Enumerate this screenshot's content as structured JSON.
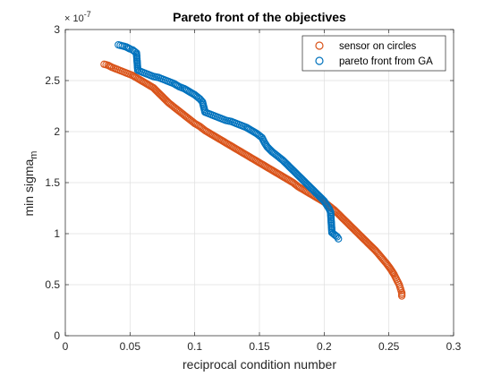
{
  "chart_data": {
    "type": "scatter",
    "title": "Pareto front of the objectives",
    "xlabel": "reciprocal condition number",
    "ylabel": "min sigma",
    "ylabel_subscript": "m",
    "y_exponent_label": "× 10",
    "y_exponent": "-7",
    "xlim": [
      0,
      0.3
    ],
    "ylim": [
      0,
      3
    ],
    "xticks": [
      "0",
      "0.05",
      "0.1",
      "0.15",
      "0.2",
      "0.25",
      "0.3"
    ],
    "yticks": [
      "0",
      "0.5",
      "1",
      "1.5",
      "2",
      "2.5",
      "3"
    ],
    "grid": true,
    "legend_position": "top-right",
    "series": [
      {
        "name": "sensor on circles",
        "color": "#D95319",
        "marker": "circle-open",
        "points": [
          [
            0.03,
            2.66
          ],
          [
            0.033,
            2.65
          ],
          [
            0.036,
            2.63
          ],
          [
            0.04,
            2.61
          ],
          [
            0.044,
            2.59
          ],
          [
            0.048,
            2.57
          ],
          [
            0.052,
            2.55
          ],
          [
            0.056,
            2.52
          ],
          [
            0.06,
            2.49
          ],
          [
            0.064,
            2.46
          ],
          [
            0.068,
            2.43
          ],
          [
            0.072,
            2.38
          ],
          [
            0.076,
            2.33
          ],
          [
            0.08,
            2.28
          ],
          [
            0.084,
            2.24
          ],
          [
            0.088,
            2.2
          ],
          [
            0.092,
            2.16
          ],
          [
            0.096,
            2.12
          ],
          [
            0.1,
            2.08
          ],
          [
            0.104,
            2.05
          ],
          [
            0.108,
            2.01
          ],
          [
            0.112,
            1.98
          ],
          [
            0.116,
            1.95
          ],
          [
            0.12,
            1.92
          ],
          [
            0.124,
            1.89
          ],
          [
            0.128,
            1.86
          ],
          [
            0.132,
            1.83
          ],
          [
            0.136,
            1.8
          ],
          [
            0.14,
            1.77
          ],
          [
            0.144,
            1.74
          ],
          [
            0.148,
            1.71
          ],
          [
            0.152,
            1.68
          ],
          [
            0.156,
            1.65
          ],
          [
            0.16,
            1.62
          ],
          [
            0.164,
            1.59
          ],
          [
            0.168,
            1.56
          ],
          [
            0.172,
            1.53
          ],
          [
            0.176,
            1.5
          ],
          [
            0.18,
            1.46
          ],
          [
            0.184,
            1.43
          ],
          [
            0.188,
            1.4
          ],
          [
            0.192,
            1.37
          ],
          [
            0.196,
            1.34
          ],
          [
            0.2,
            1.31
          ],
          [
            0.204,
            1.27
          ],
          [
            0.208,
            1.23
          ],
          [
            0.212,
            1.18
          ],
          [
            0.216,
            1.13
          ],
          [
            0.22,
            1.08
          ],
          [
            0.224,
            1.03
          ],
          [
            0.228,
            0.98
          ],
          [
            0.232,
            0.93
          ],
          [
            0.236,
            0.88
          ],
          [
            0.24,
            0.83
          ],
          [
            0.244,
            0.77
          ],
          [
            0.248,
            0.71
          ],
          [
            0.251,
            0.66
          ],
          [
            0.254,
            0.6
          ],
          [
            0.256,
            0.55
          ],
          [
            0.258,
            0.5
          ],
          [
            0.259,
            0.46
          ],
          [
            0.26,
            0.42
          ],
          [
            0.26,
            0.39
          ]
        ]
      },
      {
        "name": "pareto front from GA",
        "color": "#0072BD",
        "marker": "circle-open",
        "points": [
          [
            0.041,
            2.85
          ],
          [
            0.044,
            2.84
          ],
          [
            0.047,
            2.83
          ],
          [
            0.05,
            2.81
          ],
          [
            0.052,
            2.8
          ],
          [
            0.054,
            2.78
          ],
          [
            0.055,
            2.77
          ],
          [
            0.056,
            2.6
          ],
          [
            0.06,
            2.58
          ],
          [
            0.064,
            2.56
          ],
          [
            0.068,
            2.54
          ],
          [
            0.072,
            2.53
          ],
          [
            0.076,
            2.51
          ],
          [
            0.08,
            2.49
          ],
          [
            0.084,
            2.47
          ],
          [
            0.088,
            2.44
          ],
          [
            0.092,
            2.42
          ],
          [
            0.096,
            2.39
          ],
          [
            0.1,
            2.36
          ],
          [
            0.104,
            2.32
          ],
          [
            0.106,
            2.29
          ],
          [
            0.108,
            2.19
          ],
          [
            0.112,
            2.17
          ],
          [
            0.116,
            2.15
          ],
          [
            0.12,
            2.13
          ],
          [
            0.124,
            2.11
          ],
          [
            0.128,
            2.1
          ],
          [
            0.132,
            2.08
          ],
          [
            0.136,
            2.06
          ],
          [
            0.14,
            2.04
          ],
          [
            0.144,
            2.01
          ],
          [
            0.148,
            1.98
          ],
          [
            0.152,
            1.94
          ],
          [
            0.154,
            1.89
          ],
          [
            0.156,
            1.85
          ],
          [
            0.16,
            1.8
          ],
          [
            0.164,
            1.76
          ],
          [
            0.168,
            1.72
          ],
          [
            0.172,
            1.67
          ],
          [
            0.176,
            1.62
          ],
          [
            0.18,
            1.57
          ],
          [
            0.184,
            1.52
          ],
          [
            0.188,
            1.47
          ],
          [
            0.192,
            1.42
          ],
          [
            0.196,
            1.37
          ],
          [
            0.2,
            1.32
          ],
          [
            0.202,
            1.28
          ],
          [
            0.204,
            1.24
          ],
          [
            0.205,
            1.21
          ],
          [
            0.206,
            1.01
          ],
          [
            0.208,
            0.99
          ],
          [
            0.21,
            0.97
          ],
          [
            0.211,
            0.95
          ]
        ]
      }
    ]
  }
}
